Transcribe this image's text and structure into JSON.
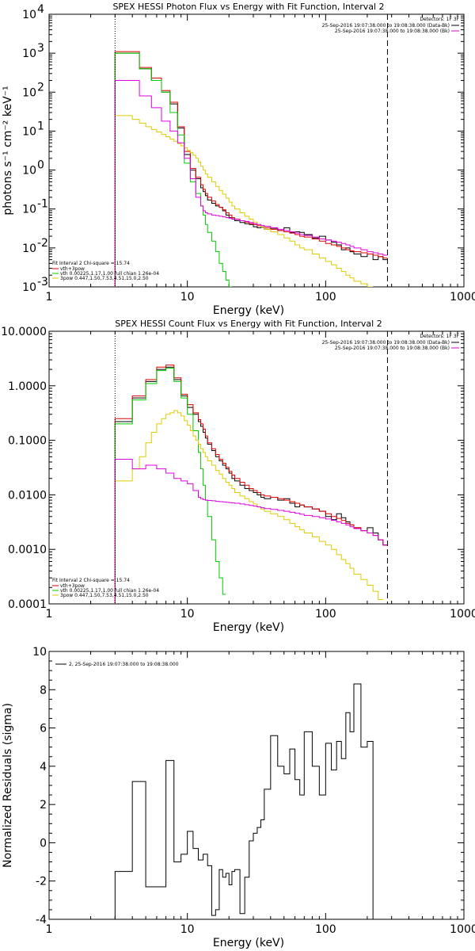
{
  "chart_data": [
    {
      "type": "line",
      "title": "SPEX HESSI Photon Flux vs Energy with Fit Function, Interval 2",
      "xlabel": "Energy (keV)",
      "ylabel": "photons s⁻¹ cm⁻² keV⁻¹",
      "x_scale": "log",
      "y_scale": "log",
      "xlim": [
        1,
        1000
      ],
      "ylim": [
        0.001,
        10000
      ],
      "x_ticks": [
        {
          "v": 1,
          "label": "1"
        },
        {
          "v": 10,
          "label": "10"
        },
        {
          "v": 100,
          "label": "100"
        },
        {
          "v": 1000,
          "label": "1000"
        }
      ],
      "y_ticks": [
        {
          "v": 0.001,
          "label": "10",
          "sup": "-3"
        },
        {
          "v": 0.01,
          "label": "10",
          "sup": "-2"
        },
        {
          "v": 0.1,
          "label": "10",
          "sup": "-1"
        },
        {
          "v": 1,
          "label": "10",
          "sup": "0"
        },
        {
          "v": 10,
          "label": "10",
          "sup": "1"
        },
        {
          "v": 100,
          "label": "10",
          "sup": "2"
        },
        {
          "v": 1000,
          "label": "10",
          "sup": "3"
        },
        {
          "v": 10000,
          "label": "10",
          "sup": "4"
        }
      ],
      "vlines": [
        {
          "x": 3,
          "style": "dotted"
        },
        {
          "x": 280,
          "style": "dashed"
        }
      ],
      "detectors": "Detectors: 1F 3F",
      "top_legend": [
        {
          "text": "25-Sep-2016 19:07:38.000 to 19:08:38.000 (Data-Bk)",
          "color": "#000000"
        },
        {
          "text": "25-Sep-2016 19:07:38.000 to 19:08:38.000 (Bk)",
          "color": "#dd00dd"
        }
      ],
      "fit_title": "Fit Interval  2   Chi-square = 15.74",
      "fit_legend": [
        {
          "text": "vth+3pow",
          "color": "#dd0000"
        },
        {
          "text": "vth 0.00225,1.17,1.00  full chian 1.26e-04",
          "color": "#00cc00"
        },
        {
          "text": "3pow 0.447,1.50,7.53,4.51,15.0,2.50",
          "color": "#ddcc00"
        }
      ],
      "edges": [
        3.0,
        3.5,
        4.0,
        4.5,
        5.0,
        5.5,
        6.0,
        6.5,
        7.0,
        7.5,
        8.0,
        8.5,
        9.0,
        9.5,
        10.0,
        10.5,
        11.0,
        11.5,
        12.0,
        12.5,
        13.0,
        13.5,
        14.0,
        15.0,
        16.0,
        17.0,
        18.0,
        19.0,
        20.0,
        21.0,
        22.0,
        24.0,
        26.0,
        28.0,
        30.0,
        32.0,
        34.0,
        36.0,
        40.0,
        45.0,
        50.0,
        55.0,
        60.0,
        65.0,
        70.0,
        80.0,
        90.0,
        100.0,
        110.0,
        120.0,
        130.0,
        140.0,
        150.0,
        160.0,
        180.0,
        200.0,
        220.0,
        240.0,
        260.0,
        280.0
      ],
      "series": [
        {
          "name": "Data-Bk",
          "color": "#000000",
          "values": [
            1000,
            1000,
            1000,
            400,
            400,
            200,
            200,
            100,
            100,
            50,
            50,
            12,
            12,
            2.5,
            2.5,
            1.0,
            1.0,
            0.6,
            0.6,
            0.35,
            0.28,
            0.22,
            0.17,
            0.14,
            0.12,
            0.11,
            0.09,
            0.07,
            0.06,
            0.055,
            0.05,
            0.045,
            0.042,
            0.04,
            0.035,
            0.033,
            0.034,
            0.03,
            0.032,
            0.028,
            0.033,
            0.025,
            0.026,
            0.025,
            0.022,
            0.018,
            0.02,
            0.016,
            0.014,
            0.012,
            0.009,
            0.01,
            0.008,
            0.007,
            0.006,
            0.007,
            0.005,
            0.006,
            0.005
          ]
        },
        {
          "name": "vth+3pow",
          "color": "#dd0000",
          "values": [
            1100,
            1100,
            1100,
            430,
            430,
            230,
            230,
            110,
            110,
            55,
            55,
            13,
            13,
            3.0,
            3.0,
            1.1,
            1.1,
            0.65,
            0.65,
            0.42,
            0.32,
            0.25,
            0.2,
            0.16,
            0.13,
            0.11,
            0.095,
            0.08,
            0.07,
            0.06,
            0.055,
            0.05,
            0.046,
            0.042,
            0.04,
            0.037,
            0.035,
            0.033,
            0.03,
            0.028,
            0.026,
            0.024,
            0.022,
            0.02,
            0.019,
            0.017,
            0.015,
            0.013,
            0.012,
            0.011,
            0.01,
            0.009,
            0.0085,
            0.008,
            0.0075,
            0.007,
            0.0065,
            0.006,
            0.0055
          ]
        },
        {
          "name": "vth",
          "color": "#00cc00",
          "values": [
            1000,
            1000,
            1000,
            400,
            400,
            200,
            200,
            100,
            100,
            30,
            30,
            8,
            8,
            1.5,
            1.5,
            0.5,
            0.5,
            0.25,
            0.25,
            0.12,
            0.07,
            0.04,
            0.025,
            0.015,
            0.008,
            0.004,
            0.0025,
            0.0015,
            0.0008
          ]
        },
        {
          "name": "3pow",
          "color": "#ddcc00",
          "values": [
            25,
            25,
            20,
            16,
            13,
            11,
            9.5,
            8.2,
            7.2,
            6.2,
            5.5,
            4.8,
            4.2,
            3.7,
            3.2,
            2.8,
            2.4,
            2.0,
            1.6,
            1.25,
            1.0,
            0.8,
            0.65,
            0.5,
            0.38,
            0.3,
            0.24,
            0.19,
            0.15,
            0.12,
            0.1,
            0.08,
            0.065,
            0.055,
            0.046,
            0.04,
            0.035,
            0.03,
            0.026,
            0.022,
            0.018,
            0.015,
            0.012,
            0.01,
            0.009,
            0.007,
            0.0055,
            0.0045,
            0.0037,
            0.003,
            0.0025,
            0.002,
            0.0017,
            0.0014,
            0.0012,
            0.001
          ]
        },
        {
          "name": "Bk",
          "color": "#dd00dd",
          "values": [
            200,
            200,
            200,
            80,
            80,
            40,
            40,
            18,
            18,
            10,
            10,
            5,
            5,
            2.0,
            2.0,
            0.6,
            0.6,
            0.2,
            0.2,
            0.12,
            0.09,
            0.08,
            0.075,
            0.07,
            0.068,
            0.065,
            0.063,
            0.06,
            0.058,
            0.056,
            0.054,
            0.05,
            0.048,
            0.045,
            0.042,
            0.04,
            0.038,
            0.036,
            0.033,
            0.03,
            0.028,
            0.026,
            0.024,
            0.022,
            0.021,
            0.019,
            0.017,
            0.016,
            0.015,
            0.014,
            0.013,
            0.012,
            0.011,
            0.01,
            0.009,
            0.008,
            0.0075,
            0.007,
            0.0065
          ]
        }
      ]
    },
    {
      "type": "line",
      "title": "SPEX HESSI Count Flux vs Energy with Fit Function, Interval 2",
      "xlabel": "Energy (keV)",
      "ylabel": "",
      "x_scale": "log",
      "y_scale": "log",
      "xlim": [
        1,
        1000
      ],
      "ylim": [
        0.0001,
        10
      ],
      "x_ticks": [
        {
          "v": 1,
          "label": "1"
        },
        {
          "v": 10,
          "label": "10"
        },
        {
          "v": 100,
          "label": "100"
        },
        {
          "v": 1000,
          "label": "1000"
        }
      ],
      "y_ticks": [
        {
          "v": 0.0001,
          "label": "0.0001"
        },
        {
          "v": 0.001,
          "label": "0.0010"
        },
        {
          "v": 0.01,
          "label": "0.0100"
        },
        {
          "v": 0.1,
          "label": "0.1000"
        },
        {
          "v": 1,
          "label": "1.0000"
        },
        {
          "v": 10,
          "label": "10.0000"
        }
      ],
      "vlines": [
        {
          "x": 3,
          "style": "dotted"
        },
        {
          "x": 280,
          "style": "dashed"
        }
      ],
      "detectors": "Detectors: 1F 3F",
      "top_legend": [
        {
          "text": "25-Sep-2016 19:07:38.000 to 19:08:38.000 (Data-Bk)",
          "color": "#000000"
        },
        {
          "text": "25-Sep-2016 19:07:38.000 to 19:08:38.000 (Bk)",
          "color": "#dd00dd"
        }
      ],
      "fit_title": "Fit Interval  2   Chi-square = 15.74",
      "fit_legend": [
        {
          "text": "vth+3pow",
          "color": "#dd0000"
        },
        {
          "text": "vth 0.00225,1.17,1.00  full chian 1.26e-04",
          "color": "#00cc00"
        },
        {
          "text": "3pow 0.447,1.50,7.53,4.51,15.0,2.50",
          "color": "#ddcc00"
        }
      ],
      "edges": [
        3.0,
        3.5,
        4.0,
        4.5,
        5.0,
        5.5,
        6.0,
        6.5,
        7.0,
        7.5,
        8.0,
        8.5,
        9.0,
        9.5,
        10.0,
        10.5,
        11.0,
        11.5,
        12.0,
        12.5,
        13.0,
        13.5,
        14.0,
        15.0,
        16.0,
        17.0,
        18.0,
        19.0,
        20.0,
        21.0,
        22.0,
        24.0,
        26.0,
        28.0,
        30.0,
        32.0,
        34.0,
        36.0,
        40.0,
        45.0,
        50.0,
        55.0,
        60.0,
        65.0,
        70.0,
        80.0,
        90.0,
        100.0,
        110.0,
        120.0,
        130.0,
        140.0,
        150.0,
        160.0,
        180.0,
        200.0,
        220.0,
        240.0,
        260.0,
        280.0
      ],
      "series": [
        {
          "name": "Data-Bk",
          "color": "#000000",
          "values": [
            0.22,
            0.22,
            0.6,
            0.6,
            1.2,
            1.2,
            2.0,
            2.0,
            2.2,
            2.2,
            1.3,
            1.3,
            0.65,
            0.65,
            0.4,
            0.4,
            0.3,
            0.3,
            0.22,
            0.18,
            0.14,
            0.11,
            0.085,
            0.065,
            0.05,
            0.042,
            0.035,
            0.03,
            0.025,
            0.02,
            0.018,
            0.015,
            0.013,
            0.012,
            0.011,
            0.01,
            0.009,
            0.0085,
            0.009,
            0.008,
            0.0085,
            0.007,
            0.006,
            0.0065,
            0.006,
            0.0055,
            0.005,
            0.004,
            0.0035,
            0.0045,
            0.0038,
            0.0032,
            0.0028,
            0.0025,
            0.0022,
            0.0025,
            0.002,
            0.0015,
            0.0012
          ]
        },
        {
          "name": "vth+3pow",
          "color": "#dd0000",
          "values": [
            0.25,
            0.25,
            0.65,
            0.65,
            1.3,
            1.3,
            2.2,
            2.2,
            2.4,
            2.4,
            1.4,
            1.4,
            0.7,
            0.7,
            0.45,
            0.45,
            0.32,
            0.32,
            0.24,
            0.2,
            0.16,
            0.12,
            0.09,
            0.07,
            0.055,
            0.045,
            0.038,
            0.032,
            0.027,
            0.023,
            0.02,
            0.017,
            0.015,
            0.013,
            0.012,
            0.011,
            0.01,
            0.0095,
            0.009,
            0.0085,
            0.008,
            0.0075,
            0.007,
            0.0065,
            0.006,
            0.0055,
            0.005,
            0.0045,
            0.004,
            0.0037,
            0.0034,
            0.003,
            0.0028,
            0.0025,
            0.0022,
            0.002,
            0.0018,
            0.0015,
            0.0012
          ]
        },
        {
          "name": "vth",
          "color": "#00cc00",
          "values": [
            0.2,
            0.2,
            0.55,
            0.55,
            1.1,
            1.1,
            1.9,
            1.9,
            2.1,
            2.1,
            1.2,
            1.2,
            0.6,
            0.6,
            0.3,
            0.3,
            0.15,
            0.15,
            0.06,
            0.03,
            0.015,
            0.008,
            0.004,
            0.0015,
            0.0006,
            0.0003,
            0.00015
          ]
        },
        {
          "name": "3pow",
          "color": "#ddcc00",
          "values": [
            0.018,
            0.018,
            0.03,
            0.05,
            0.09,
            0.14,
            0.2,
            0.25,
            0.3,
            0.32,
            0.35,
            0.32,
            0.28,
            0.23,
            0.19,
            0.15,
            0.12,
            0.1,
            0.085,
            0.07,
            0.06,
            0.05,
            0.042,
            0.035,
            0.028,
            0.024,
            0.02,
            0.017,
            0.015,
            0.013,
            0.011,
            0.0095,
            0.0085,
            0.0075,
            0.0068,
            0.006,
            0.0055,
            0.005,
            0.0045,
            0.004,
            0.0035,
            0.003,
            0.0026,
            0.0023,
            0.002,
            0.0017,
            0.0014,
            0.0012,
            0.001,
            0.0008,
            0.00065,
            0.00055,
            0.00045,
            0.00035,
            0.00028,
            0.00022,
            0.00017,
            0.00012
          ]
        },
        {
          "name": "Bk",
          "color": "#dd00dd",
          "values": [
            0.045,
            0.045,
            0.03,
            0.03,
            0.035,
            0.035,
            0.03,
            0.03,
            0.025,
            0.025,
            0.02,
            0.02,
            0.018,
            0.018,
            0.016,
            0.016,
            0.012,
            0.012,
            0.009,
            0.0085,
            0.0082,
            0.008,
            0.0079,
            0.0078,
            0.0076,
            0.0075,
            0.0074,
            0.0073,
            0.0072,
            0.0071,
            0.007,
            0.0068,
            0.0066,
            0.0064,
            0.0062,
            0.006,
            0.0058,
            0.0056,
            0.0054,
            0.0052,
            0.005,
            0.0048,
            0.0046,
            0.0044,
            0.0042,
            0.004,
            0.0038,
            0.0036,
            0.0034,
            0.0032,
            0.003,
            0.0028,
            0.0026,
            0.0024,
            0.0022,
            0.002,
            0.0018,
            0.0015,
            0.0012
          ]
        }
      ]
    },
    {
      "type": "line",
      "title": "",
      "xlabel": "Energy (keV)",
      "ylabel": "Normalized Residuals (sigma)",
      "x_scale": "log",
      "y_scale": "linear",
      "xlim": [
        1,
        1000
      ],
      "ylim": [
        -4,
        10
      ],
      "x_ticks": [
        {
          "v": 1,
          "label": "1"
        },
        {
          "v": 10,
          "label": "10"
        },
        {
          "v": 100,
          "label": "100"
        },
        {
          "v": 1000,
          "label": "1000"
        }
      ],
      "y_ticks": [
        {
          "v": -4,
          "label": "-4"
        },
        {
          "v": -2,
          "label": "-2"
        },
        {
          "v": 0,
          "label": "0"
        },
        {
          "v": 2,
          "label": "2"
        },
        {
          "v": 4,
          "label": "4"
        },
        {
          "v": 6,
          "label": "6"
        },
        {
          "v": 8,
          "label": "8"
        },
        {
          "v": 10,
          "label": "10"
        }
      ],
      "legend": "2, 25-Sep-2016 19:07:38.000 to 19:08:38.000",
      "edges": [
        3.0,
        4.0,
        5.0,
        6.0,
        7.0,
        8.0,
        9.0,
        10.0,
        11.0,
        12.0,
        13.0,
        14.0,
        15.0,
        16.0,
        17.0,
        18.0,
        19.0,
        20.0,
        21.0,
        22.0,
        24.0,
        26.0,
        28.0,
        30.0,
        32.0,
        34.0,
        36.0,
        40.0,
        45.0,
        50.0,
        55.0,
        60.0,
        65.0,
        70.0,
        80.0,
        90.0,
        100.0,
        110.0,
        120.0,
        130.0,
        140.0,
        150.0,
        160.0,
        180.0,
        200.0,
        220.0,
        240.0,
        260.0,
        280.0
      ],
      "series": [
        {
          "name": "",
          "color": "#000000",
          "values": [
            -1.5,
            3.2,
            -2.3,
            -2.3,
            4.3,
            -1.0,
            -0.6,
            0.6,
            -0.3,
            -0.9,
            -0.6,
            -1.2,
            -3.8,
            -3.5,
            -1.4,
            -1.8,
            -1.6,
            -2.2,
            -1.5,
            -1.4,
            -3.7,
            -1.8,
            0.1,
            0.5,
            0.8,
            1.2,
            2.8,
            5.6,
            4.0,
            3.6,
            4.9,
            3.3,
            2.5,
            5.8,
            4.0,
            2.5,
            5.2,
            3.8,
            5.3,
            4.4,
            6.8,
            5.8,
            8.3,
            5.0,
            5.3,
            -4.0,
            -4.0,
            -4.0
          ]
        }
      ]
    }
  ]
}
